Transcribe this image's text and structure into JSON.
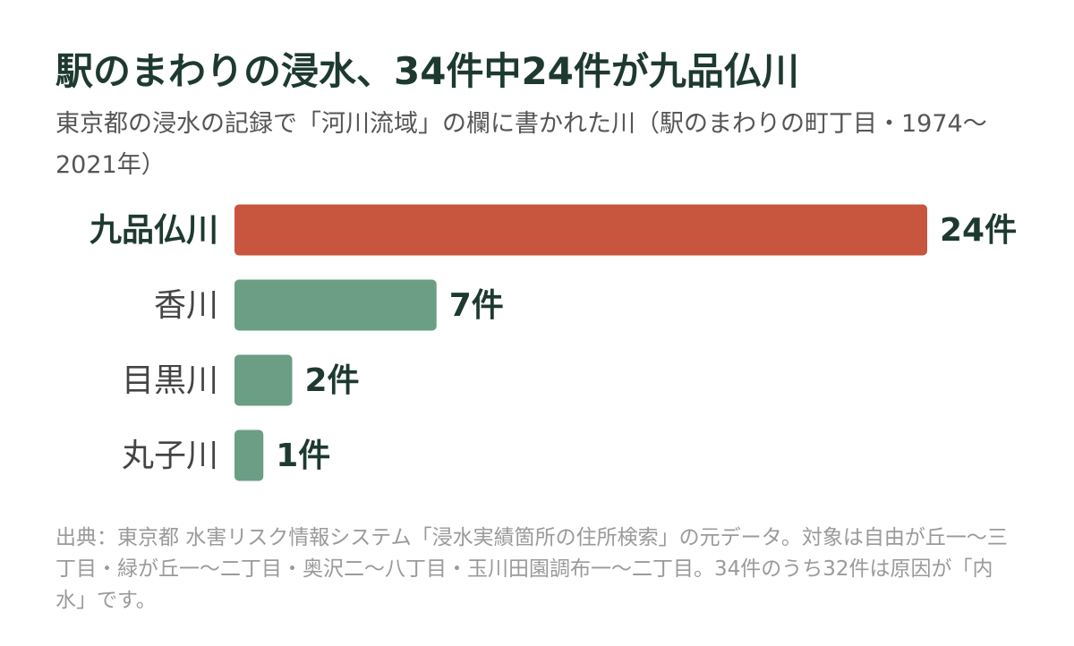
{
  "chart_data": {
    "type": "bar",
    "orientation": "horizontal",
    "title": "駅のまわりの浸水、34件中24件が九品仏川",
    "subtitle": "東京都の浸水の記録で「河川流域」の欄に書かれた川（駅のまわりの町丁目・1974～2021年）",
    "categories": [
      "九品仏川",
      "香川",
      "目黒川",
      "丸子川"
    ],
    "values": [
      24,
      7,
      2,
      1
    ],
    "value_labels": [
      "24件",
      "7件",
      "2件",
      "1件"
    ],
    "colors": [
      "#c8553d",
      "#6b9e84",
      "#6b9e84",
      "#6b9e84"
    ],
    "note": "出典：東京都 水害リスク情報システム「浸水実績箇所の住所検索」の元データ。対象は自由が丘一～三丁目・緑が丘一～二丁目・奥沢二～八丁目・玉川田園調布一～二丁目。34件のうち32件は原因が「内水」です。"
  }
}
